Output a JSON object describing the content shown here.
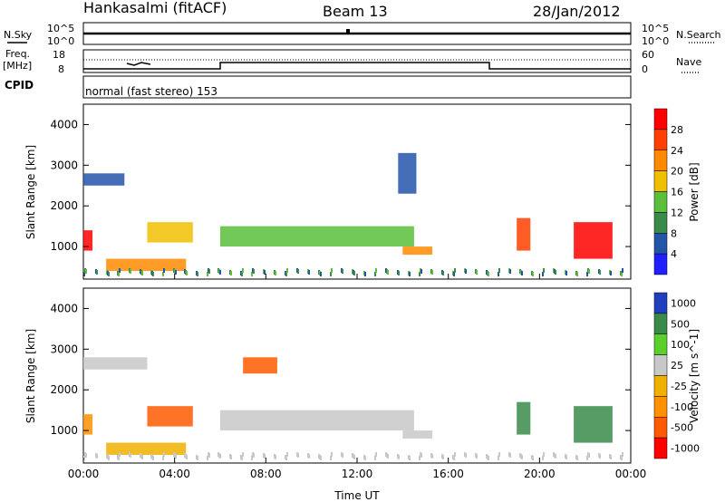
{
  "header": {
    "station": "Hankasalmi (fitACF)",
    "beam": "Beam 13",
    "date": "28/Jan/2012"
  },
  "panels": {
    "nsky": {
      "left_label": "N.Sky",
      "left_top": "10^5",
      "left_bottom": "10^0",
      "right_top": "10^5",
      "right_bottom": "10^0",
      "right_label": "N.Search"
    },
    "freq": {
      "left_label_1": "Freq.",
      "left_label_2": "[MHz]",
      "left_top": "18",
      "left_bottom": "8",
      "right_top": "60",
      "right_bottom": "0",
      "right_label": "Nave"
    },
    "cpid": {
      "label": "CPID",
      "value": "normal (fast stereo) 153"
    }
  },
  "colors": {
    "power": [
      "#1f1fff",
      "#2255aa",
      "#3a8a4a",
      "#5bbf3a",
      "#f0c000",
      "#ff8a00",
      "#ff4000",
      "#ff0000"
    ],
    "velocity": [
      "#ff0000",
      "#ff5a00",
      "#ff9000",
      "#f0b000",
      "#c8c8c8",
      "#5bd02a",
      "#3a8a4a",
      "#1f3fbf"
    ]
  },
  "chart_data": [
    {
      "type": "heatmap",
      "ylabel": "Slant Range [km]",
      "xlabel": "",
      "ylim": [
        200,
        4500
      ],
      "xlim": [
        0,
        24
      ],
      "yticks": [
        "1000",
        "2000",
        "3000",
        "4000"
      ],
      "colorbar_label": "Power [dB]",
      "colorbar_ticks": [
        "4",
        "8",
        "12",
        "16",
        "20",
        "24",
        "28"
      ],
      "features": [
        {
          "t0": 0.0,
          "t1": 1.8,
          "r0": 2500,
          "r1": 2800,
          "level": 1
        },
        {
          "t0": 0.0,
          "t1": 0.4,
          "r0": 900,
          "r1": 1400,
          "level": 7
        },
        {
          "t0": 1.0,
          "t1": 4.5,
          "r0": 400,
          "r1": 700,
          "level": 5
        },
        {
          "t0": 2.8,
          "t1": 4.8,
          "r0": 1100,
          "r1": 1600,
          "level": 4
        },
        {
          "t0": 6.0,
          "t1": 14.5,
          "r0": 1000,
          "r1": 1500,
          "level": 3
        },
        {
          "t0": 14.0,
          "t1": 15.3,
          "r0": 800,
          "r1": 1000,
          "level": 5
        },
        {
          "t0": 13.8,
          "t1": 14.6,
          "r0": 2300,
          "r1": 3300,
          "level": 1
        },
        {
          "t0": 19.0,
          "t1": 19.6,
          "r0": 900,
          "r1": 1700,
          "level": 6
        },
        {
          "t0": 21.5,
          "t1": 23.2,
          "r0": 700,
          "r1": 1600,
          "level": 7
        }
      ]
    },
    {
      "type": "heatmap",
      "ylabel": "Slant Range [km]",
      "xlabel": "Time UT",
      "ylim": [
        200,
        4500
      ],
      "xlim": [
        0,
        24
      ],
      "yticks": [
        "1000",
        "2000",
        "3000",
        "4000"
      ],
      "xticks": [
        "00:00",
        "04:00",
        "08:00",
        "12:00",
        "16:00",
        "20:00",
        "00:00"
      ],
      "colorbar_label": "Velocity [m s^-1]",
      "colorbar_ticks": [
        "1000",
        "500",
        "100",
        "25",
        "-25",
        "-100",
        "-500",
        "-1000"
      ],
      "features": [
        {
          "t0": 0.0,
          "t1": 2.8,
          "r0": 2500,
          "r1": 2800,
          "level": 4
        },
        {
          "t0": 0.0,
          "t1": 0.4,
          "r0": 900,
          "r1": 1400,
          "level": 2
        },
        {
          "t0": 1.0,
          "t1": 4.5,
          "r0": 400,
          "r1": 700,
          "level": 3
        },
        {
          "t0": 2.8,
          "t1": 4.8,
          "r0": 1100,
          "r1": 1600,
          "level": 1
        },
        {
          "t0": 6.0,
          "t1": 14.5,
          "r0": 1000,
          "r1": 1500,
          "level": 4
        },
        {
          "t0": 7.0,
          "t1": 8.5,
          "r0": 2400,
          "r1": 2800,
          "level": 1
        },
        {
          "t0": 14.0,
          "t1": 15.3,
          "r0": 800,
          "r1": 1000,
          "level": 4
        },
        {
          "t0": 19.0,
          "t1": 19.6,
          "r0": 900,
          "r1": 1700,
          "level": 6
        },
        {
          "t0": 21.5,
          "t1": 23.2,
          "r0": 700,
          "r1": 1600,
          "level": 6
        }
      ]
    }
  ]
}
